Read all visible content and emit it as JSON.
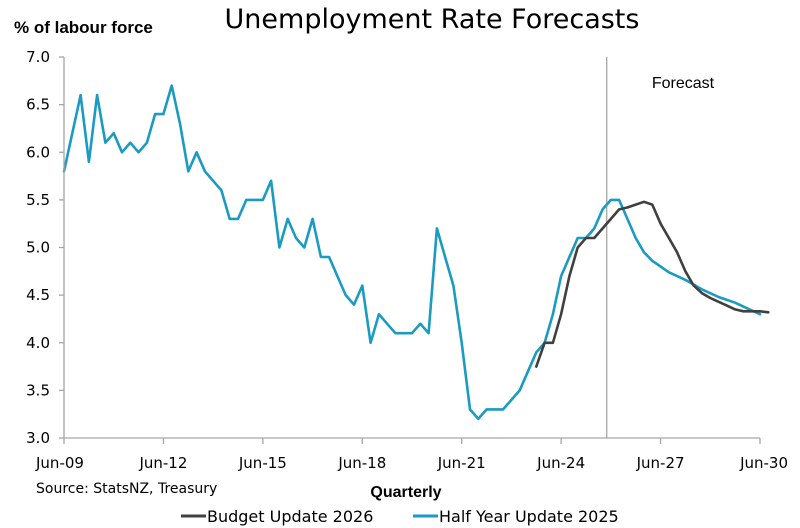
{
  "chart_data": {
    "type": "line",
    "title": "Unemployment Rate Forecasts",
    "ylabel": "% of labour force",
    "xlabel": "Quarterly",
    "source": "Source: StatsNZ, Treasury",
    "annotation": "Forecast",
    "forecast_start": 65.5,
    "ylim": [
      3.0,
      7.0
    ],
    "yticks": [
      "3.0",
      "3.5",
      "4.0",
      "4.5",
      "5.0",
      "5.5",
      "6.0",
      "6.5",
      "7.0"
    ],
    "xlim": [
      0,
      84
    ],
    "xticks": [
      {
        "label": "Jun-09",
        "i": 0
      },
      {
        "label": "Jun-12",
        "i": 12
      },
      {
        "label": "Jun-15",
        "i": 24
      },
      {
        "label": "Jun-18",
        "i": 36
      },
      {
        "label": "Jun-21",
        "i": 48
      },
      {
        "label": "Jun-24",
        "i": 60
      },
      {
        "label": "Jun-27",
        "i": 72
      },
      {
        "label": "Jun-30",
        "i": 84
      }
    ],
    "legend_placement": "bottom",
    "series": [
      {
        "name": "Budget Update 2026",
        "color": "#404040",
        "start": 57,
        "values": [
          3.75,
          4.0,
          4.0,
          4.3,
          4.7,
          5.0,
          5.1,
          5.1,
          5.2,
          5.3,
          5.4,
          5.42,
          5.45,
          5.48,
          5.45,
          5.25,
          5.1,
          4.95,
          4.75,
          4.6,
          4.52,
          4.47,
          4.43,
          4.39,
          4.35,
          4.33,
          4.33,
          4.33,
          4.32
        ]
      },
      {
        "name": "Half Year Update 2025",
        "color": "#1b9ac2",
        "start": 0,
        "values": [
          5.8,
          6.2,
          6.6,
          5.9,
          6.6,
          6.1,
          6.2,
          6.0,
          6.1,
          6.0,
          6.1,
          6.4,
          6.4,
          6.7,
          6.3,
          5.8,
          6.0,
          5.8,
          5.7,
          5.6,
          5.3,
          5.3,
          5.5,
          5.5,
          5.5,
          5.7,
          5.0,
          5.3,
          5.1,
          5.0,
          5.3,
          4.9,
          4.9,
          4.7,
          4.5,
          4.4,
          4.6,
          4.0,
          4.3,
          4.2,
          4.1,
          4.1,
          4.1,
          4.2,
          4.1,
          5.2,
          4.9,
          4.6,
          4.0,
          3.3,
          3.2,
          3.3,
          3.3,
          3.3,
          3.4,
          3.5,
          3.7,
          3.9,
          4.0,
          4.3,
          4.7,
          4.9,
          5.1,
          5.1,
          5.2,
          5.4,
          5.5,
          5.5,
          5.3,
          5.1,
          4.95,
          4.86,
          4.8,
          4.74,
          4.7,
          4.66,
          4.61,
          4.56,
          4.52,
          4.48,
          4.45,
          4.42,
          4.38,
          4.34,
          4.3
        ]
      }
    ]
  }
}
